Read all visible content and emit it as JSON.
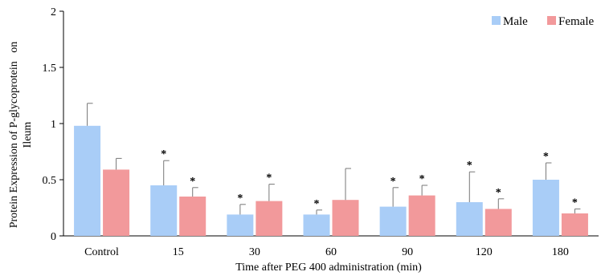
{
  "chart_data": {
    "type": "bar",
    "xlabel": "Time after PEG 400 administration (min)",
    "ylabel_lines": [
      "Protein Expression of P-glycoprotein   on",
      "Ileum"
    ],
    "categories": [
      "Control",
      "15",
      "30",
      "60",
      "90",
      "120",
      "180"
    ],
    "ylim": [
      0,
      2
    ],
    "yticks": [
      "0",
      "0.5",
      "1",
      "1.5",
      "2"
    ],
    "ytick_values": [
      0,
      0.5,
      1,
      1.5,
      2
    ],
    "grid": false,
    "legend_position": "top-right",
    "series": [
      {
        "name": "Male",
        "color": "#A9CDF7",
        "values": [
          0.98,
          0.45,
          0.19,
          0.19,
          0.26,
          0.3,
          0.5
        ],
        "error_upper": [
          0.2,
          0.22,
          0.09,
          0.04,
          0.17,
          0.27,
          0.15
        ],
        "significant": [
          false,
          true,
          true,
          true,
          true,
          true,
          true
        ]
      },
      {
        "name": "Female",
        "color": "#F2999B",
        "values": [
          0.59,
          0.35,
          0.31,
          0.32,
          0.36,
          0.24,
          0.2
        ],
        "error_upper": [
          0.1,
          0.08,
          0.15,
          0.28,
          0.09,
          0.09,
          0.04
        ],
        "significant": [
          false,
          true,
          true,
          false,
          true,
          true,
          true
        ]
      }
    ],
    "significance_marker": "*"
  }
}
